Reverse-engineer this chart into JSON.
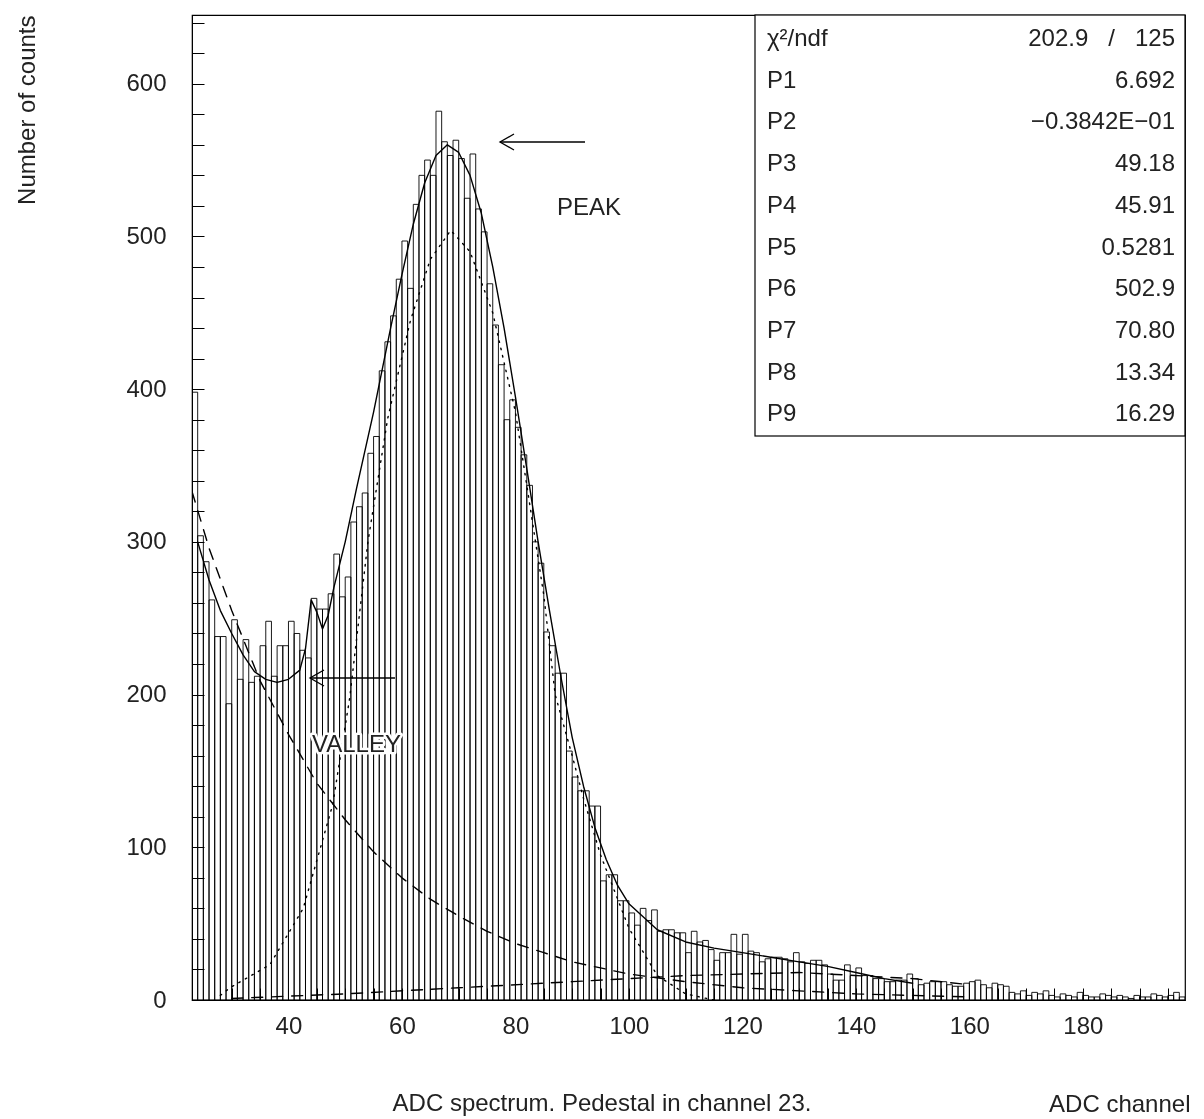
{
  "chart_data": {
    "type": "histogram",
    "xlabel": "ADC channel",
    "ylabel": "Number of counts",
    "xlim": [
      23,
      198
    ],
    "ylim": [
      0,
      645
    ],
    "xticks": [
      {
        "value": 30,
        "label": null
      },
      {
        "value": 35,
        "label": null
      },
      40,
      {
        "value": 45,
        "label": null
      },
      {
        "value": 50,
        "label": null
      },
      {
        "value": 55,
        "label": null
      },
      60,
      {
        "value": 65,
        "label": null
      },
      {
        "value": 70,
        "label": null
      },
      {
        "value": 75,
        "label": null
      },
      80,
      {
        "value": 85,
        "label": null
      },
      {
        "value": 90,
        "label": null
      },
      {
        "value": 95,
        "label": null
      },
      100,
      {
        "value": 105,
        "label": null
      },
      {
        "value": 110,
        "label": null
      },
      {
        "value": 115,
        "label": null
      },
      120,
      {
        "value": 125,
        "label": null
      },
      {
        "value": 130,
        "label": null
      },
      {
        "value": 135,
        "label": null
      },
      140,
      {
        "value": 145,
        "label": null
      },
      {
        "value": 150,
        "label": null
      },
      {
        "value": 155,
        "label": null
      },
      160,
      {
        "value": 165,
        "label": null
      },
      {
        "value": 170,
        "label": null
      },
      {
        "value": 175,
        "label": null
      },
      180,
      {
        "value": 185,
        "label": null
      },
      {
        "value": 190,
        "label": null
      },
      {
        "value": 195,
        "label": null
      }
    ],
    "yticks": [
      0,
      {
        "value": 20,
        "label": null
      },
      {
        "value": 40,
        "label": null
      },
      {
        "value": 60,
        "label": null
      },
      {
        "value": 80,
        "label": null
      },
      100,
      {
        "value": 120,
        "label": null
      },
      {
        "value": 140,
        "label": null
      },
      {
        "value": 160,
        "label": null
      },
      {
        "value": 180,
        "label": null
      },
      200,
      {
        "value": 220,
        "label": null
      },
      {
        "value": 240,
        "label": null
      },
      {
        "value": 260,
        "label": null
      },
      {
        "value": 280,
        "label": null
      },
      300,
      {
        "value": 320,
        "label": null
      },
      {
        "value": 340,
        "label": null
      },
      {
        "value": 360,
        "label": null
      },
      {
        "value": 380,
        "label": null
      },
      400,
      {
        "value": 420,
        "label": null
      },
      {
        "value": 440,
        "label": null
      },
      {
        "value": 460,
        "label": null
      },
      {
        "value": 480,
        "label": null
      },
      500,
      {
        "value": 520,
        "label": null
      },
      {
        "value": 540,
        "label": null
      },
      {
        "value": 560,
        "label": null
      },
      {
        "value": 580,
        "label": null
      },
      600,
      {
        "value": 620,
        "label": null
      },
      {
        "value": 640,
        "label": null
      }
    ],
    "color": "#000000",
    "bins": [
      23,
      24,
      25,
      26,
      27,
      28,
      29,
      30,
      31,
      32,
      33,
      34,
      35,
      36,
      37,
      38,
      39,
      40,
      41,
      42,
      43,
      44,
      45,
      46,
      47,
      48,
      49,
      50,
      51,
      52,
      53,
      54,
      55,
      56,
      57,
      58,
      59,
      60,
      61,
      62,
      63,
      64,
      65,
      66,
      67,
      68,
      69,
      70,
      71,
      72,
      73,
      74,
      75,
      76,
      77,
      78,
      79,
      80,
      81,
      82,
      83,
      84,
      85,
      86,
      87,
      88,
      89,
      90,
      91,
      92,
      93,
      94,
      95,
      96,
      97,
      98,
      99,
      100,
      101,
      102,
      103,
      104,
      105,
      106,
      107,
      108,
      109,
      110,
      111,
      112,
      113,
      114,
      115,
      116,
      117,
      118,
      119,
      120,
      121,
      122,
      123,
      124,
      125,
      126,
      127,
      128,
      129,
      130,
      131,
      132,
      133,
      134,
      135,
      136,
      137,
      138,
      139,
      140,
      141,
      142,
      143,
      144,
      145,
      146,
      147,
      148,
      149,
      150,
      151,
      152,
      153,
      154,
      155,
      156,
      157,
      158,
      159,
      160,
      161,
      162,
      163,
      164,
      165,
      166,
      167,
      168,
      169,
      170,
      171,
      172,
      173,
      174,
      175,
      176,
      177,
      178,
      179,
      180,
      181,
      182,
      183,
      184,
      185,
      186,
      187,
      188,
      189,
      190,
      191,
      192,
      193,
      194,
      195,
      196,
      197,
      198
    ],
    "values": [
      398,
      304,
      287,
      262,
      238,
      238,
      194,
      249,
      210,
      236,
      208,
      212,
      232,
      248,
      212,
      232,
      232,
      248,
      240,
      229,
      224,
      263,
      256,
      256,
      266,
      292,
      264,
      277,
      313,
      323,
      332,
      358,
      369,
      412,
      431,
      448,
      472,
      497,
      466,
      521,
      540,
      550,
      540,
      582,
      562,
      553,
      563,
      551,
      525,
      554,
      518,
      503,
      469,
      442,
      416,
      380,
      393,
      375,
      357,
      337,
      300,
      286,
      241,
      232,
      214,
      214,
      163,
      146,
      137,
      137,
      127,
      127,
      78,
      82,
      82,
      65,
      65,
      57,
      49,
      60,
      52,
      59,
      45,
      46,
      46,
      44,
      44,
      31,
      45,
      38,
      39,
      33,
      26,
      31,
      31,
      43,
      30,
      43,
      32,
      31,
      25,
      27,
      28,
      28,
      27,
      25,
      31,
      25,
      24,
      26,
      26,
      23,
      17,
      13,
      13,
      23,
      16,
      21,
      16,
      16,
      14,
      14,
      12,
      12,
      13,
      13,
      17,
      14,
      10,
      11,
      12,
      12,
      12,
      10,
      9,
      9,
      11,
      12,
      13,
      10,
      8,
      11,
      10,
      9,
      5,
      4,
      6,
      3,
      5,
      4,
      6,
      3,
      2,
      4,
      3,
      2,
      5,
      3,
      2,
      2,
      4,
      3,
      2,
      3,
      2,
      1,
      3,
      2,
      2,
      4,
      3,
      2,
      3,
      5,
      2
    ],
    "series": [
      {
        "type": "line",
        "color": "#000000",
        "line_style": "solid",
        "x": [
          24,
          26,
          28,
          30,
          32,
          34,
          36,
          38,
          40,
          42,
          43,
          44,
          45,
          46,
          47,
          48,
          50,
          52,
          55,
          58,
          60,
          62,
          64,
          66,
          68,
          70,
          72,
          74,
          76,
          78,
          80,
          82,
          84,
          86,
          88,
          90,
          92,
          94,
          96,
          98,
          100,
          105,
          110,
          115,
          120,
          125,
          130,
          135,
          140,
          145,
          150
        ],
        "values": [
          300,
          275,
          255,
          240,
          226,
          215,
          210,
          208,
          210,
          216,
          230,
          262,
          254,
          243,
          252,
          270,
          300,
          335,
          385,
          440,
          475,
          508,
          535,
          553,
          560,
          555,
          540,
          515,
          480,
          440,
          395,
          348,
          300,
          255,
          212,
          172,
          140,
          113,
          92,
          75,
          63,
          46,
          38,
          34,
          31,
          28,
          25,
          22,
          18,
          14,
          11
        ]
      },
      {
        "type": "line",
        "color": "#000000",
        "line_style": "dashed",
        "x": [
          23,
          26,
          30,
          35,
          40,
          45,
          50,
          55,
          60,
          65,
          70,
          75,
          80,
          85,
          90,
          95,
          100,
          110,
          120,
          130,
          140,
          150,
          160
        ],
        "values": [
          333,
          296,
          255,
          209,
          174,
          142,
          118,
          97,
          80,
          66,
          55,
          45,
          37,
          31,
          25,
          21,
          17,
          12,
          8,
          6,
          4,
          3,
          2
        ]
      },
      {
        "type": "line",
        "color": "#000000",
        "line_style": "dotted",
        "x": [
          28,
          29.7,
          36.7,
          42.6,
          47.8,
          50.8,
          54,
          57.5,
          61.5,
          65,
          68.6,
          72,
          76,
          80,
          85,
          87,
          90,
          92,
          95,
          100,
          105,
          110,
          115
        ],
        "values": [
          3,
          8,
          23,
          60,
          128,
          198,
          300,
          381,
          445,
          485,
          504,
          490,
          450,
          385,
          265,
          200,
          160,
          132,
          95,
          47,
          16,
          4,
          0
        ]
      },
      {
        "type": "line",
        "color": "#000000",
        "line_style": "dashed",
        "x": [
          30,
          50,
          70,
          90,
          110,
          130,
          150,
          160
        ],
        "values": [
          1,
          4,
          8,
          12,
          16,
          18,
          14,
          10
        ]
      }
    ],
    "annotations": [
      "χ²/ndf 202.9   /   125",
      "P1 6.692",
      "P2 −0.3842E−01",
      "P3 49.18",
      "P4 45.91",
      "P5 0.5281",
      "P6 502.9",
      "P7 70.80",
      "P8 13.34",
      "P9 16.29",
      "ADC spectrum. Pedestal in channel 23.",
      "PEAK",
      "VALLEY"
    ]
  }
}
